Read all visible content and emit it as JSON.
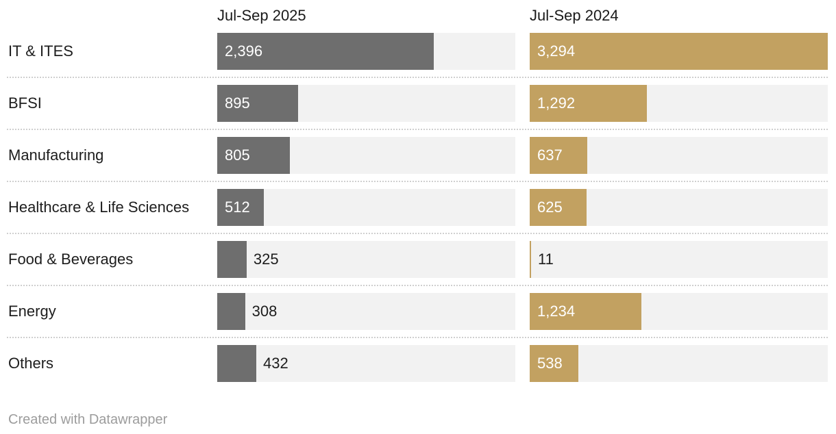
{
  "chart_data": {
    "type": "bar",
    "orientation": "horizontal",
    "title": "",
    "categories": [
      "IT & ITES",
      "BFSI",
      "Manufacturing",
      "Healthcare & Life Sciences",
      "Food & Beverages",
      "Energy",
      "Others"
    ],
    "series": [
      {
        "name": "Jul-Sep 2025",
        "color": "#6e6e6e",
        "values": [
          2396,
          895,
          805,
          512,
          325,
          308,
          432
        ]
      },
      {
        "name": "Jul-Sep 2024",
        "color": "#c2a161",
        "values": [
          3294,
          1292,
          637,
          625,
          11,
          1234,
          538
        ]
      }
    ],
    "xmax": 3294,
    "xlabel": "",
    "ylabel": "",
    "grid": false,
    "legend_position": "column-headers",
    "value_format": "thousands-comma",
    "track_color": "#f2f2f2",
    "value_label_inside_color": "#ffffff",
    "value_label_outside_color": "#1d1d1d"
  },
  "footer": {
    "attribution": "Created with Datawrapper"
  }
}
